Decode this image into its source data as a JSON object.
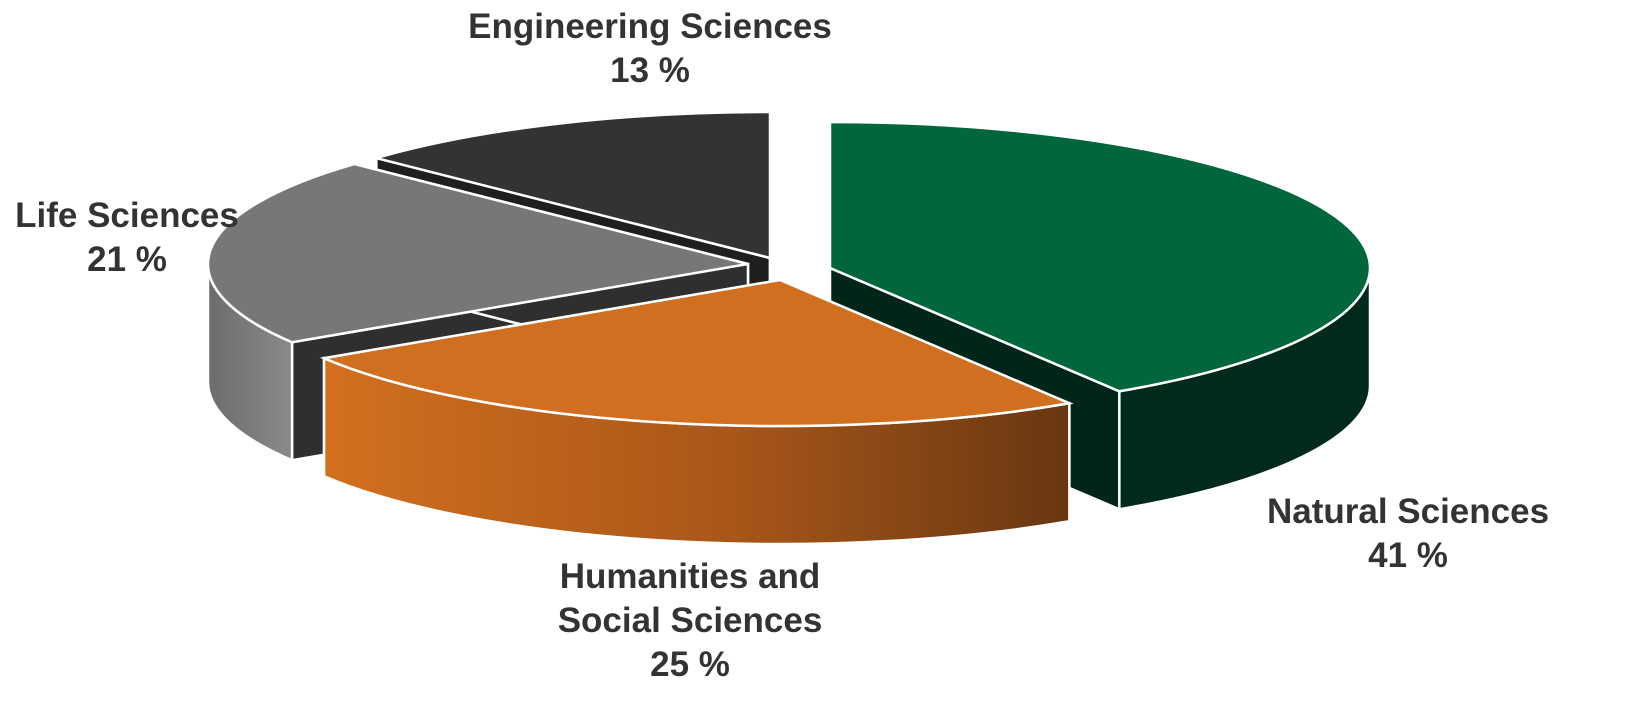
{
  "chart_data": {
    "type": "pie",
    "style": "3d-exploded",
    "legend": "none",
    "slices": [
      {
        "name": "Natural Sciences",
        "value": 41,
        "value_label": "41 %",
        "top_color": "#02663d",
        "side_color": "#022a1b",
        "label_lines": [
          "Natural Sciences"
        ]
      },
      {
        "name": "Humanities and Social Sciences",
        "value": 25,
        "value_label": "25 %",
        "top_color": "#d16f20",
        "side_color": "#b25b1c",
        "label_lines": [
          "Humanities and",
          "Social Sciences"
        ]
      },
      {
        "name": "Life Sciences",
        "value": 21,
        "value_label": "21 %",
        "top_color": "#777777",
        "side_color": "#6f6f6f",
        "label_lines": [
          "Life Sciences"
        ]
      },
      {
        "name": "Engineering Sciences",
        "value": 13,
        "value_label": "13 %",
        "top_color": "#333333",
        "side_color": "#1f1f1f",
        "label_lines": [
          "Engineering Sciences"
        ]
      }
    ]
  }
}
